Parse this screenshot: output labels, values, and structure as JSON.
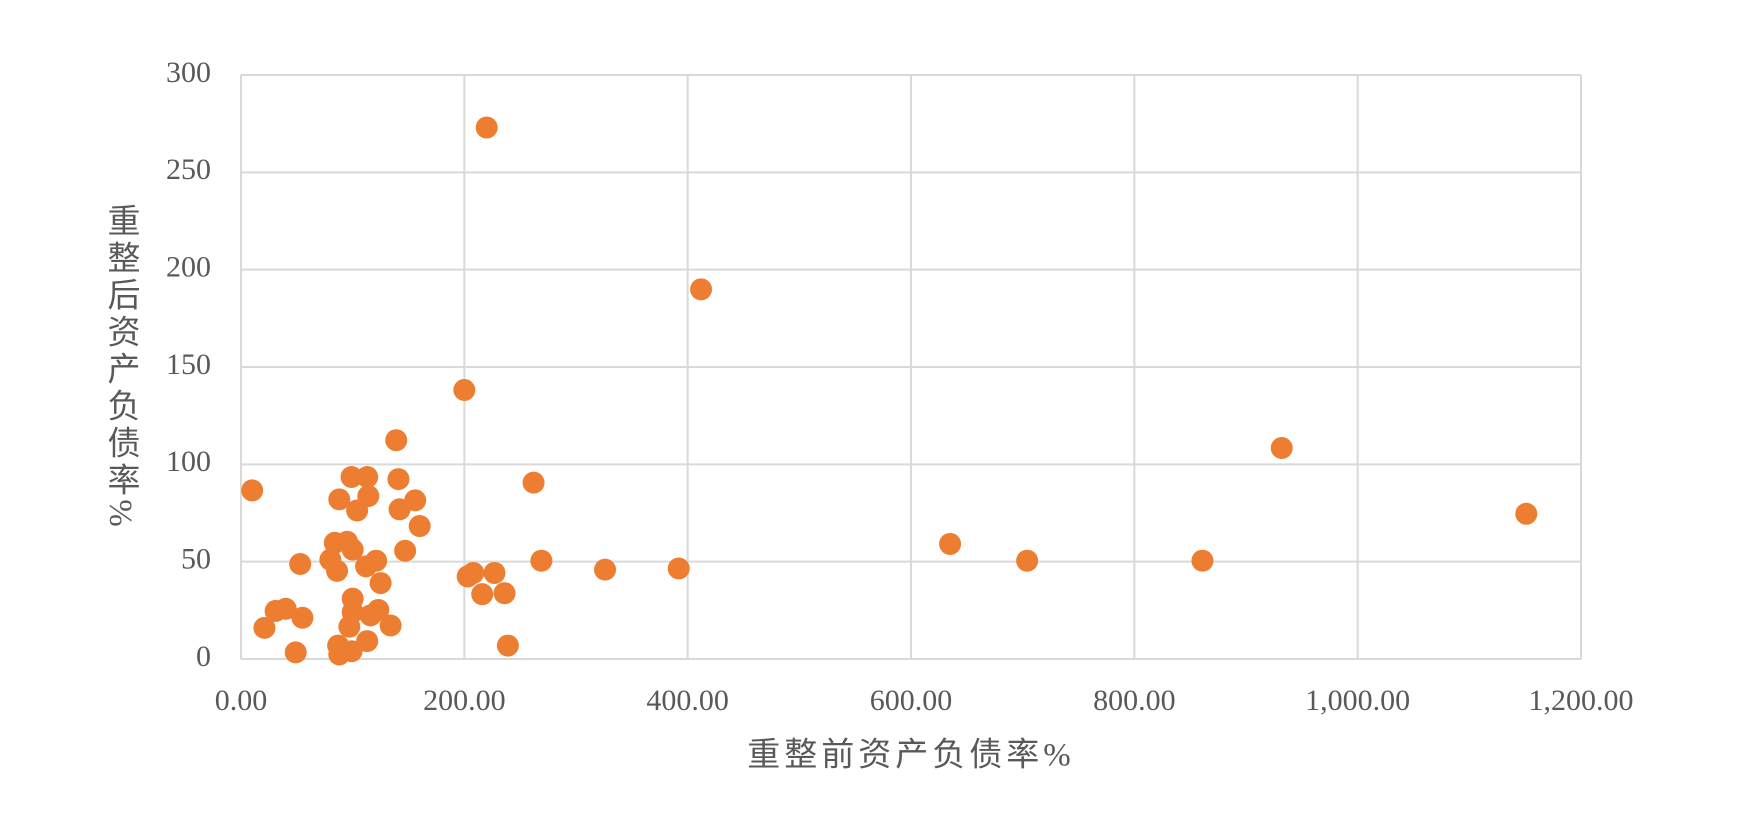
{
  "chart_data": {
    "type": "scatter",
    "x_label": "重整前资产负债率%",
    "y_label": "重整后资产负债率%",
    "color": "#ed7d31",
    "grid": true,
    "xlim": [
      0,
      1200
    ],
    "ylim": [
      0,
      300
    ],
    "xticks": [
      {
        "value": 0,
        "label": "0.00"
      },
      {
        "value": 200,
        "label": "200.00"
      },
      {
        "value": 400,
        "label": "400.00"
      },
      {
        "value": 600,
        "label": "600.00"
      },
      {
        "value": 800,
        "label": "800.00"
      },
      {
        "value": 1000,
        "label": "1,000.00"
      },
      {
        "value": 1200,
        "label": "1,200.00"
      }
    ],
    "yticks": [
      0,
      50,
      100,
      150,
      200,
      250,
      300
    ],
    "x": [
      10,
      21,
      31,
      40,
      49,
      53,
      55,
      80,
      84,
      86,
      88,
      87,
      88,
      95,
      99,
      100,
      100,
      100,
      97,
      99,
      104,
      112,
      113,
      114,
      113,
      116,
      121,
      123,
      125,
      134,
      139,
      141,
      142,
      147,
      156,
      160,
      200,
      203,
      208,
      216,
      220,
      227,
      236,
      239,
      262,
      269,
      326,
      392,
      412,
      635,
      704,
      861,
      932,
      1151
    ],
    "y": [
      86.6,
      16,
      24.7,
      25.8,
      3.4,
      48.8,
      21.2,
      51,
      59.7,
      45.3,
      82,
      6.9,
      2.3,
      60.2,
      93.5,
      56.2,
      31,
      24.1,
      16.6,
      4,
      76.3,
      47.6,
      93.5,
      83.7,
      9.2,
      22.4,
      50.5,
      25.2,
      39,
      17.2,
      112.4,
      92.4,
      76.9,
      55.6,
      81.5,
      68.3,
      138.2,
      42.4,
      44.2,
      33.3,
      273,
      44.2,
      33.8,
      6.9,
      90.6,
      50.5,
      45.9,
      46.5,
      189.9,
      59.1,
      50.5,
      50.5,
      108.4,
      74.6
    ]
  }
}
